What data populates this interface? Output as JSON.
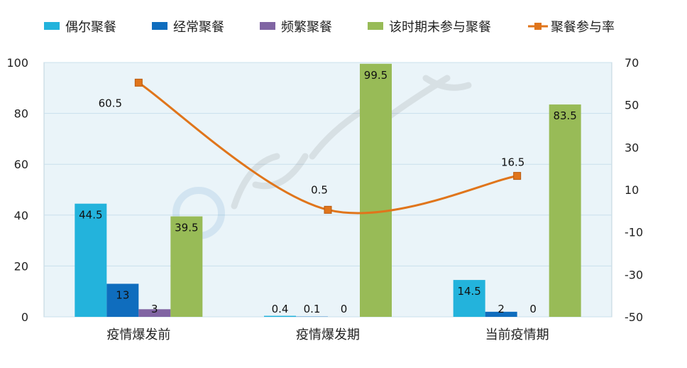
{
  "chart_data": {
    "type": "bar",
    "categories": [
      "疫情爆发前",
      "疫情爆发期",
      "当前疫情期"
    ],
    "series": [
      {
        "name": "偶尔聚餐",
        "type": "bar",
        "axis": "left",
        "color": "#23B3DC",
        "values": [
          44.5,
          0.4,
          14.5
        ]
      },
      {
        "name": "经常聚餐",
        "type": "bar",
        "axis": "left",
        "color": "#0F6DBE",
        "values": [
          13,
          0.1,
          2
        ]
      },
      {
        "name": "频繁聚餐",
        "type": "bar",
        "axis": "left",
        "color": "#8065A3",
        "values": [
          3,
          0,
          0
        ]
      },
      {
        "name": "该时期未参与聚餐",
        "type": "bar",
        "axis": "left",
        "color": "#98BB57",
        "values": [
          39.5,
          99.5,
          83.5
        ]
      },
      {
        "name": "聚餐参与率",
        "type": "line",
        "axis": "right",
        "color": "#E0751B",
        "values": [
          60.5,
          0.5,
          16.5
        ]
      }
    ],
    "ylim_left": [
      0,
      100
    ],
    "yticks_left": [
      "0",
      "20",
      "40",
      "60",
      "80",
      "100"
    ],
    "ylim_right": [
      -50,
      70
    ],
    "yticks_right": [
      "-50",
      "-30",
      "-10",
      "10",
      "30",
      "50",
      "70"
    ],
    "plot_background": "#EAF4F9",
    "grid": true,
    "legend_position": "top"
  }
}
